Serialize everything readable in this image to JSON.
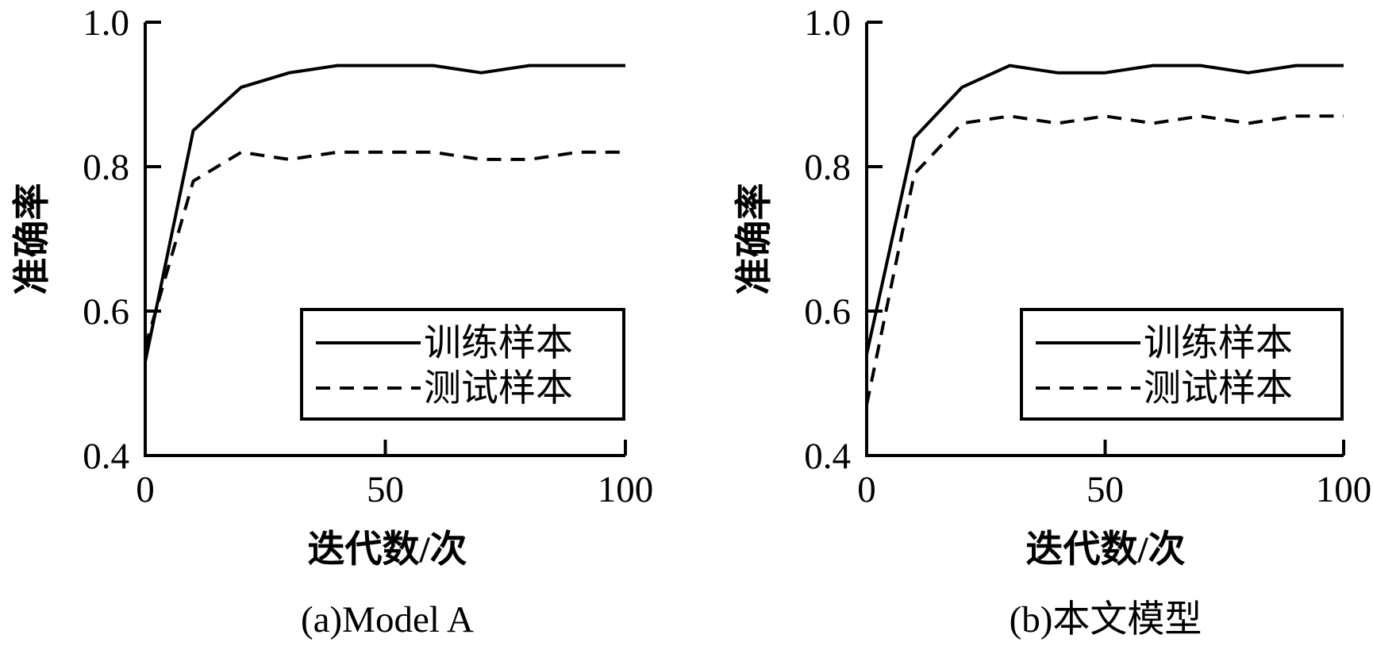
{
  "chart_data": [
    {
      "type": "line",
      "caption": "(a)Model A",
      "xlabel": "迭代数/次",
      "ylabel": "准确率",
      "xlim": [
        0,
        100
      ],
      "ylim": [
        0.4,
        1.0
      ],
      "xticks": [
        "0",
        "50",
        "100"
      ],
      "yticks": [
        "0.4",
        "0.6",
        "0.8",
        "1.0"
      ],
      "legend_position": "lower-right",
      "series": [
        {
          "name": "训练样本",
          "style": "solid",
          "x": [
            0,
            10,
            20,
            30,
            40,
            50,
            60,
            70,
            80,
            90,
            100
          ],
          "y": [
            0.53,
            0.85,
            0.91,
            0.93,
            0.94,
            0.94,
            0.94,
            0.93,
            0.94,
            0.94,
            0.94
          ]
        },
        {
          "name": "测试样本",
          "style": "dashed",
          "x": [
            0,
            10,
            20,
            30,
            40,
            50,
            60,
            70,
            80,
            90,
            100
          ],
          "y": [
            0.55,
            0.78,
            0.82,
            0.81,
            0.82,
            0.82,
            0.82,
            0.81,
            0.81,
            0.82,
            0.82
          ]
        }
      ]
    },
    {
      "type": "line",
      "caption": "(b)本文模型",
      "xlabel": "迭代数/次",
      "ylabel": "准确率",
      "xlim": [
        0,
        100
      ],
      "ylim": [
        0.4,
        1.0
      ],
      "xticks": [
        "0",
        "50",
        "100"
      ],
      "yticks": [
        "0.4",
        "0.6",
        "0.8",
        "1.0"
      ],
      "legend_position": "lower-right",
      "series": [
        {
          "name": "训练样本",
          "style": "solid",
          "x": [
            0,
            10,
            20,
            30,
            40,
            50,
            60,
            70,
            80,
            90,
            100
          ],
          "y": [
            0.54,
            0.84,
            0.91,
            0.94,
            0.93,
            0.93,
            0.94,
            0.94,
            0.93,
            0.94,
            0.94
          ]
        },
        {
          "name": "测试样本",
          "style": "dashed",
          "x": [
            0,
            10,
            20,
            30,
            40,
            50,
            60,
            70,
            80,
            90,
            100
          ],
          "y": [
            0.47,
            0.79,
            0.86,
            0.87,
            0.86,
            0.87,
            0.86,
            0.87,
            0.86,
            0.87,
            0.87
          ]
        }
      ]
    }
  ]
}
